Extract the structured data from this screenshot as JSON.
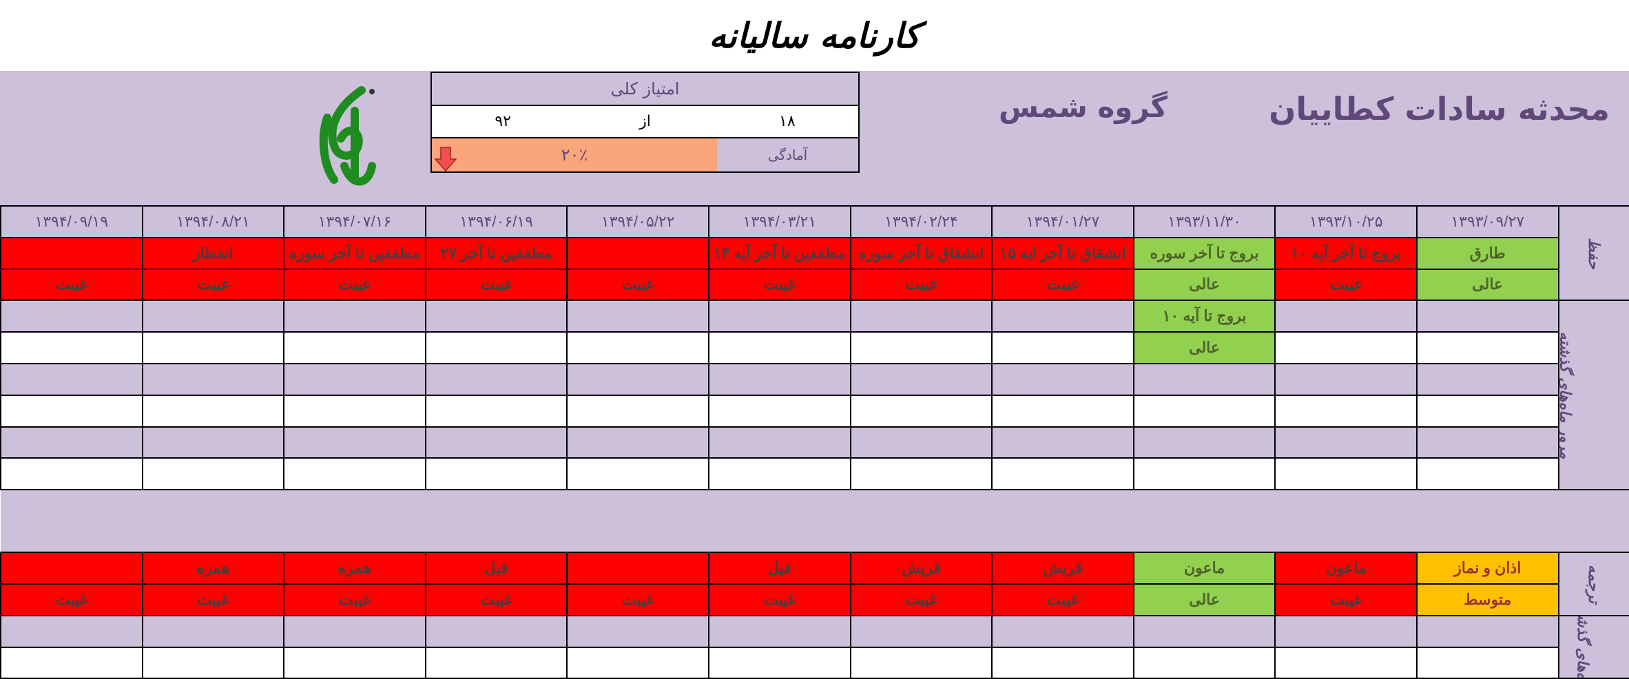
{
  "title": "کارنامه سالیانه",
  "header": {
    "student_name": "محدثه سادات کطاییان",
    "group_name": "گروه شمس",
    "logo_text": "جانم",
    "score": {
      "title": "امتیاز کلی",
      "value": "۱۸",
      "of_label": "از",
      "total": "۹۲",
      "readiness_label": "آمادگی",
      "readiness_value": "۲۰٪",
      "trend_icon": "arrow-down-icon"
    }
  },
  "colors": {
    "red": "#FF0000",
    "green": "#92D050",
    "orange": "#FFC000",
    "purple": "#CCC0DA",
    "accent_text": "#60497A"
  },
  "labels": {
    "hifz": "حفظ",
    "muroor": "مرور ماه‌های گذشته",
    "tarjome": "ترجمه",
    "past": "ماه‌های گذشته"
  },
  "dates": [
    "۱۳۹۳/۰۹/۲۷",
    "۱۳۹۳/۱۰/۲۵",
    "۱۳۹۳/۱۱/۳۰",
    "۱۳۹۴/۰۱/۲۷",
    "۱۳۹۴/۰۲/۲۴",
    "۱۳۹۴/۰۳/۲۱",
    "۱۳۹۴/۰۵/۲۲",
    "۱۳۹۴/۰۶/۱۹",
    "۱۳۹۴/۰۷/۱۶",
    "۱۳۹۴/۰۸/۲۱",
    "۱۳۹۴/۰۹/۱۹"
  ],
  "hifz": {
    "topics": [
      [
        "طارق",
        "green"
      ],
      [
        "بروج تا آخر آیه ۱۰",
        "red"
      ],
      [
        "بروج تا آخر سوره",
        "green"
      ],
      [
        "انشقاق تا آخر ایه ۱۵",
        "red"
      ],
      [
        "انشقاق تا آخر سوره",
        "red"
      ],
      [
        "مطففین تا آخر آیه ۱۴",
        "red"
      ],
      [
        "",
        "red"
      ],
      [
        "مطففین تا آخر ۲۷",
        "red"
      ],
      [
        "مطففین تا آخر سوره",
        "red"
      ],
      [
        "انفطار",
        "red"
      ],
      [
        "",
        "red"
      ]
    ],
    "grades": [
      [
        "عالی",
        "green"
      ],
      [
        "غیبت",
        "red"
      ],
      [
        "عالی",
        "green"
      ],
      [
        "غیبت",
        "red"
      ],
      [
        "غیبت",
        "red"
      ],
      [
        "غیبت",
        "red"
      ],
      [
        "غیبت",
        "red"
      ],
      [
        "غیبت",
        "red"
      ],
      [
        "غیبت",
        "red"
      ],
      [
        "غیبت",
        "red"
      ],
      [
        "غیبت",
        "red"
      ]
    ]
  },
  "muroor": [
    {
      "col": 2,
      "row": 0,
      "text": "بروج تا آیه ۱۰",
      "status": "green"
    },
    {
      "col": 2,
      "row": 1,
      "text": "عالی",
      "status": "green"
    }
  ],
  "tarjome": {
    "topics": [
      [
        "اذان و نماز",
        "orange"
      ],
      [
        "ماعون",
        "red"
      ],
      [
        "ماعون",
        "green"
      ],
      [
        "قریش",
        "red"
      ],
      [
        "قریش",
        "red"
      ],
      [
        "فیل",
        "red"
      ],
      [
        "",
        "red"
      ],
      [
        "فیل",
        "red"
      ],
      [
        "همزه",
        "red"
      ],
      [
        "همزه",
        "red"
      ],
      [
        "",
        "red"
      ]
    ],
    "grades": [
      [
        "متوسط",
        "orange"
      ],
      [
        "غیبت",
        "red"
      ],
      [
        "عالی",
        "green"
      ],
      [
        "غیبت",
        "red"
      ],
      [
        "غیبت",
        "red"
      ],
      [
        "غیبت",
        "red"
      ],
      [
        "غیبت",
        "red"
      ],
      [
        "غیبت",
        "red"
      ],
      [
        "غیبت",
        "red"
      ],
      [
        "غیبت",
        "red"
      ],
      [
        "غیبت",
        "red"
      ]
    ]
  }
}
